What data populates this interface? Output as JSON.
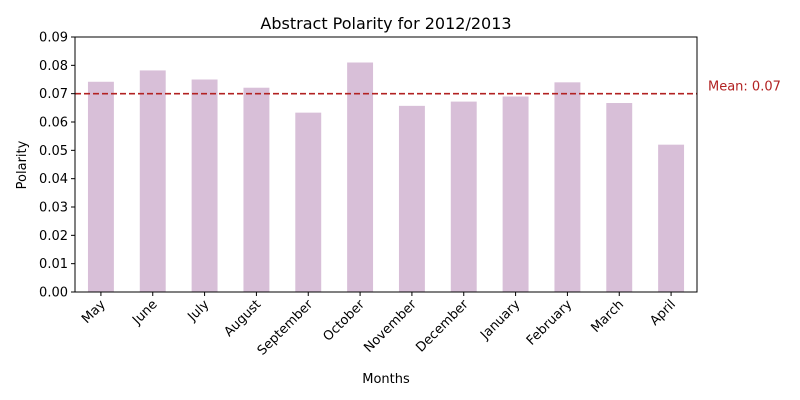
{
  "chart_data": {
    "type": "bar",
    "title": "Abstract Polarity for 2012/2013",
    "xlabel": "Months",
    "ylabel": "Polarity",
    "categories": [
      "May",
      "June",
      "July",
      "August",
      "September",
      "October",
      "November",
      "December",
      "January",
      "February",
      "March",
      "April"
    ],
    "values": [
      0.0742,
      0.0782,
      0.075,
      0.0721,
      0.0633,
      0.081,
      0.0657,
      0.0672,
      0.069,
      0.074,
      0.0667,
      0.052
    ],
    "ylim": [
      0,
      0.09
    ],
    "yticks": [
      "0.00",
      "0.01",
      "0.02",
      "0.03",
      "0.04",
      "0.05",
      "0.06",
      "0.07",
      "0.08",
      "0.09"
    ],
    "mean": 0.07,
    "mean_label": "Mean: 0.07",
    "bar_color": "#d8bfd8",
    "mean_line_color": "#b22222",
    "grid": false
  }
}
